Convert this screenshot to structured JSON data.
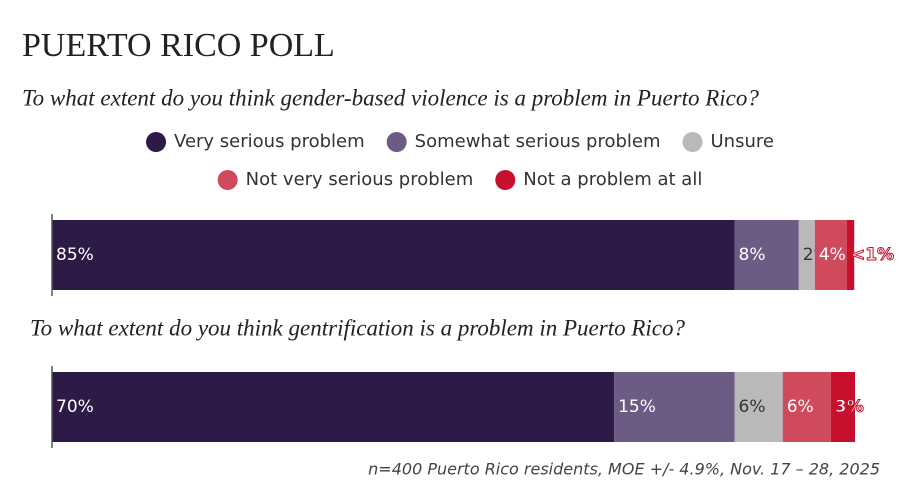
{
  "chart_data": {
    "type": "stacked-bar-horizontal",
    "title": "PUERTO RICO POLL",
    "categories": [
      "To what extent do you think gender-based violence is a problem in Puerto Rico?",
      "To what extent do you think gentrification is a problem in Puerto Rico?"
    ],
    "series": [
      {
        "name": "Very serious problem",
        "color": "#2e1a47",
        "values": [
          85,
          70
        ],
        "value_labels": [
          "85%",
          "70%"
        ]
      },
      {
        "name": "Somewhat serious problem",
        "color": "#6b5b85",
        "values": [
          8,
          15
        ],
        "value_labels": [
          "8%",
          "15%"
        ]
      },
      {
        "name": "Unsure",
        "color": "#b9b9b9",
        "values": [
          2,
          6
        ],
        "value_labels": [
          "2%",
          "6%"
        ]
      },
      {
        "name": "Not very serious problem",
        "color": "#d04a5e",
        "values": [
          4,
          6
        ],
        "value_labels": [
          "4%",
          "6%"
        ]
      },
      {
        "name": "Not a problem at all",
        "color": "#c8102e",
        "values": [
          0.9,
          3
        ],
        "value_labels": [
          "<1%",
          "3%"
        ]
      }
    ],
    "xlim": [
      0,
      100
    ],
    "note": "n=400 Puerto Rico residents, MOE +/- 4.9%, Nov. 17 – 28, 2025"
  }
}
